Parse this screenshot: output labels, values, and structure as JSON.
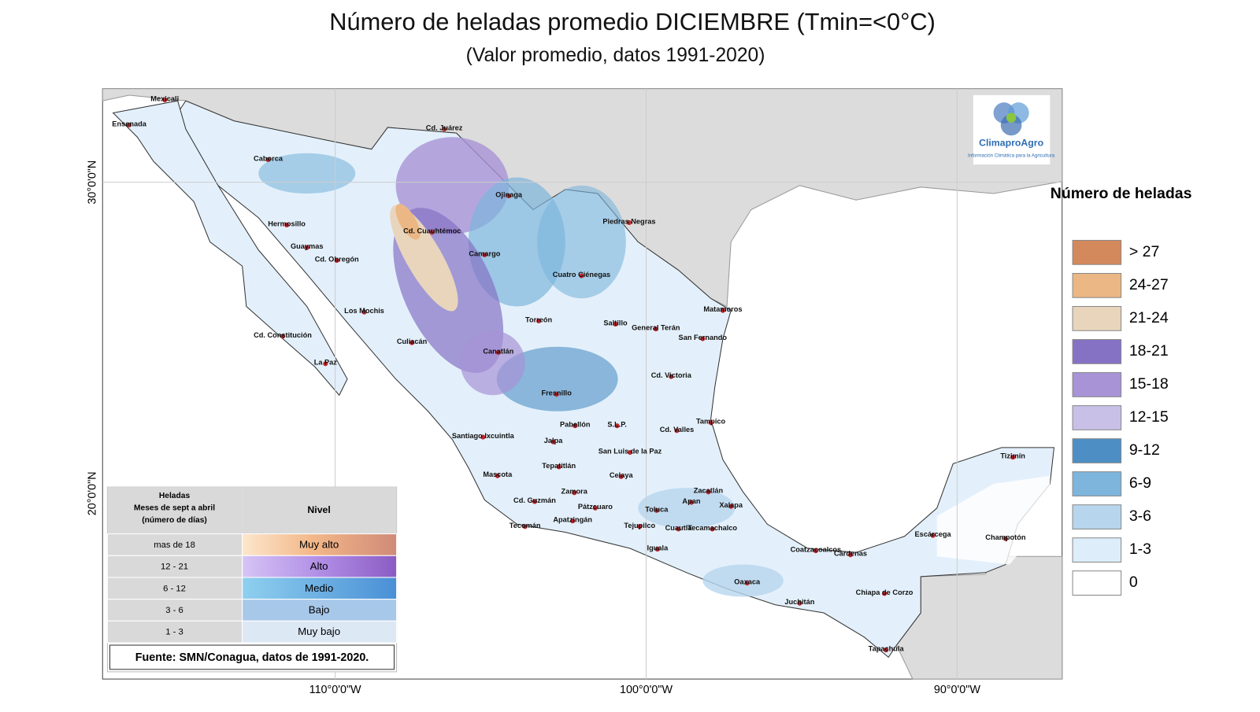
{
  "title": "Número de heladas promedio DICIEMBRE (Tmin=<0°C)",
  "subtitle": "(Valor promedio, datos 1991-2020)",
  "map": {
    "lat_labels": [
      "30°0'0\"N",
      "20°0'0\"N"
    ],
    "lon_labels": [
      "110°0'0\"W",
      "100°0'0\"W",
      "90°0'0\"W"
    ],
    "cities": [
      "Mexicali",
      "Ensenada",
      "Caborca",
      "Cd. Juárez",
      "Ojinaga",
      "Piedras Negras",
      "Hermosillo",
      "Cd. Cuauhtémoc",
      "Guaymas",
      "Cd. Obregón",
      "Camargo",
      "Cuatro Ciénegas",
      "Matamoros",
      "Los Mochis",
      "Torreón",
      "Saltillo",
      "General Terán",
      "San Fernando",
      "Cd. Constitución",
      "Culiacán",
      "Canatlán",
      "La Paz",
      "Cd. Victoria",
      "Fresnillo",
      "Tampico",
      "Pabellón",
      "S.L.P.",
      "Cd. Valles",
      "Santiago Ixcuintla",
      "Jalpa",
      "San Luis de la Paz",
      "Tizimín",
      "Tepatitlán",
      "Mascota",
      "Celaya",
      "Zamora",
      "Zacatlán",
      "Cd. Guzmán",
      "Apan",
      "Xalapa",
      "Pátzcuaro",
      "Toluca",
      "Apatzingán",
      "Tecomán",
      "Tejupilco",
      "Cuautla",
      "Tecamachalco",
      "Escárcega",
      "Champotón",
      "Coatzacoalcos",
      "Iguala",
      "Cárdenas",
      "Oaxaca",
      "Chiapa de Corzo",
      "Juchitán",
      "Tapachula"
    ]
  },
  "logo": {
    "name": "ClimaproAgro",
    "tagline": "Información Climática para la Agricultura"
  },
  "legend": {
    "title": "Número de heladas",
    "items": [
      {
        "label": "> 27",
        "color": "#d4895c"
      },
      {
        "label": "24-27",
        "color": "#ebb784"
      },
      {
        "label": "21-24",
        "color": "#e8d5bc"
      },
      {
        "label": "18-21",
        "color": "#8572c4"
      },
      {
        "label": "15-18",
        "color": "#a793d6"
      },
      {
        "label": "12-15",
        "color": "#c9c0e8"
      },
      {
        "label": "9-12",
        "color": "#4d8fc4"
      },
      {
        "label": "6-9",
        "color": "#7db5dc"
      },
      {
        "label": "3-6",
        "color": "#b7d6ee"
      },
      {
        "label": "1-3",
        "color": "#ddeefa"
      },
      {
        "label": "0",
        "color": "#ffffff"
      }
    ]
  },
  "inset_table": {
    "header": [
      "Heladas",
      "Meses de sept a abril",
      "(número de días)",
      "Nivel"
    ],
    "rows": [
      [
        "mas de 18",
        "Muy alto"
      ],
      [
        "12 - 21",
        "Alto"
      ],
      [
        "6 - 12",
        "Medio"
      ],
      [
        "3 - 6",
        "Bajo"
      ],
      [
        "1 - 3",
        "Muy bajo"
      ]
    ]
  },
  "source": "Fuente: SMN/Conagua, datos de 1991-2020."
}
